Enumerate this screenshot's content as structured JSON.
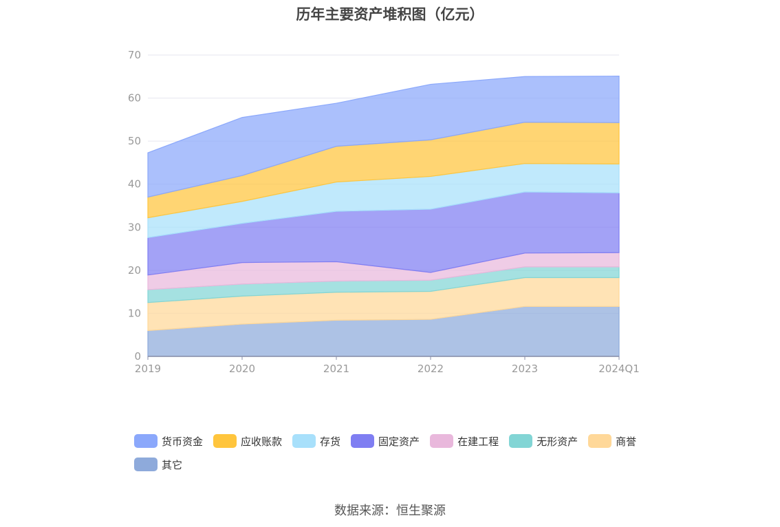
{
  "chart_data": {
    "type": "area",
    "stacked": true,
    "title": "历年主要资产堆积图（亿元）",
    "xlabel": "",
    "ylabel": "",
    "categories": [
      "2019",
      "2020",
      "2021",
      "2022",
      "2023",
      "2024Q1"
    ],
    "ylim": [
      0,
      70
    ],
    "yticks": [
      0,
      10,
      20,
      30,
      40,
      50,
      60,
      70
    ],
    "grid": true,
    "legend_position": "bottom",
    "series": [
      {
        "name": "其它",
        "color": "#8eaadb",
        "values": [
          6.0,
          7.5,
          8.4,
          8.6,
          11.6,
          11.6
        ]
      },
      {
        "name": "商誉",
        "color": "#ffd899",
        "values": [
          6.5,
          6.5,
          6.5,
          6.5,
          6.7,
          6.7
        ]
      },
      {
        "name": "无形资产",
        "color": "#82d5d5",
        "values": [
          3.0,
          2.8,
          2.6,
          2.6,
          2.5,
          2.5
        ]
      },
      {
        "name": "在建工程",
        "color": "#e9b8dc",
        "values": [
          3.4,
          5.0,
          4.5,
          1.8,
          3.2,
          3.3
        ]
      },
      {
        "name": "固定资产",
        "color": "#7f7ef2",
        "values": [
          8.7,
          9.1,
          11.7,
          14.7,
          14.2,
          13.9
        ]
      },
      {
        "name": "存货",
        "color": "#a8e0fb",
        "values": [
          4.6,
          5.1,
          6.8,
          7.6,
          6.6,
          6.7
        ]
      },
      {
        "name": "应收账款",
        "color": "#ffc53d",
        "values": [
          4.8,
          6.0,
          8.3,
          8.5,
          9.6,
          9.6
        ]
      },
      {
        "name": "货币资金",
        "color": "#8ba8fb",
        "values": [
          10.3,
          13.5,
          10.0,
          12.9,
          10.6,
          10.8
        ]
      }
    ]
  },
  "source": "数据来源：恒生聚源"
}
